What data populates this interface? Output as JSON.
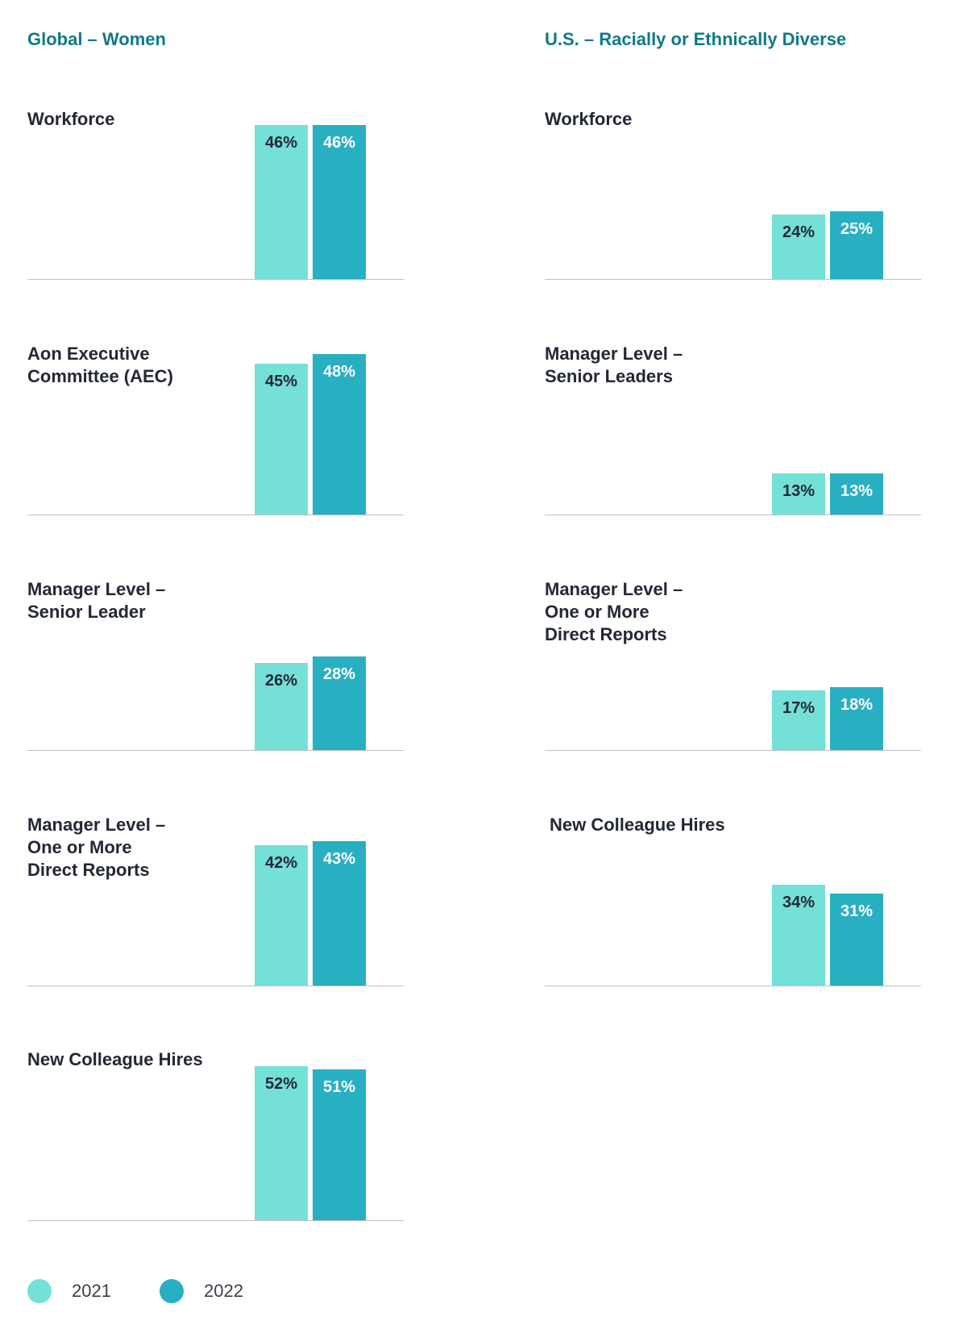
{
  "colors": {
    "y2021": "#74e0d8",
    "y2022": "#29afc2",
    "title": "#0f7a86",
    "label2021": "#232836",
    "label2022": "#ffffff"
  },
  "legend": [
    {
      "label": "2021",
      "color": "#74e0d8"
    },
    {
      "label": "2022",
      "color": "#29afc2"
    }
  ],
  "chart_data": [
    {
      "type": "bar",
      "group": "Global – Women",
      "title": [
        "Workforce"
      ],
      "categories": [
        "2021",
        "2022"
      ],
      "values": [
        46,
        46
      ],
      "value_labels": [
        "46%",
        "46%"
      ],
      "ylim": [
        0,
        46
      ]
    },
    {
      "type": "bar",
      "group": "Global – Women",
      "title": [
        "Aon Executive",
        "Committee (AEC)"
      ],
      "categories": [
        "2021",
        "2022"
      ],
      "values": [
        45,
        48
      ],
      "value_labels": [
        "45%",
        "48%"
      ],
      "ylim": [
        0,
        46
      ]
    },
    {
      "type": "bar",
      "group": "Global – Women",
      "title": [
        "Manager Level –",
        "Senior Leader"
      ],
      "categories": [
        "2021",
        "2022"
      ],
      "values": [
        26,
        28
      ],
      "value_labels": [
        "26%",
        "28%"
      ],
      "ylim": [
        0,
        46
      ]
    },
    {
      "type": "bar",
      "group": "Global – Women",
      "title": [
        "Manager Level –",
        "One or More",
        "Direct Reports"
      ],
      "categories": [
        "2021",
        "2022"
      ],
      "values": [
        42,
        43
      ],
      "value_labels": [
        "42%",
        "43%"
      ],
      "ylim": [
        0,
        46
      ]
    },
    {
      "type": "bar",
      "group": "Global – Women",
      "title": [
        "New Colleague Hires"
      ],
      "categories": [
        "2021",
        "2022"
      ],
      "values": [
        52,
        51
      ],
      "value_labels": [
        "52%",
        "51%"
      ],
      "ylim": [
        0,
        52
      ]
    },
    {
      "type": "bar",
      "group": "U.S. – Racially or Ethnically Diverse",
      "title": [
        "Workforce"
      ],
      "categories": [
        "2021",
        "2022"
      ],
      "values": [
        24,
        25
      ],
      "value_labels": [
        "24%",
        "25%"
      ],
      "ylim": [
        0,
        57
      ]
    },
    {
      "type": "bar",
      "group": "U.S. – Racially or Ethnically Diverse",
      "title": [
        "Manager Level –",
        "Senior Leaders"
      ],
      "categories": [
        "2021",
        "2022"
      ],
      "values": [
        13,
        13
      ],
      "value_labels": [
        "13%",
        "13%"
      ],
      "ylim": [
        0,
        49
      ]
    },
    {
      "type": "bar",
      "group": "U.S. – Racially or Ethnically Diverse",
      "title": [
        "Manager Level –",
        "One or More",
        "Direct Reports"
      ],
      "categories": [
        "2021",
        "2022"
      ],
      "values": [
        17,
        18
      ],
      "value_labels": [
        "17%",
        "18%"
      ],
      "ylim": [
        0,
        44
      ]
    },
    {
      "type": "bar",
      "group": "U.S. – Racially or Ethnically Diverse",
      "title": [
        "New Colleague Hires"
      ],
      "categories": [
        "2021",
        "2022"
      ],
      "values": [
        34,
        31
      ],
      "value_labels": [
        "34%",
        "31%"
      ],
      "ylim": [
        0,
        52
      ]
    }
  ]
}
